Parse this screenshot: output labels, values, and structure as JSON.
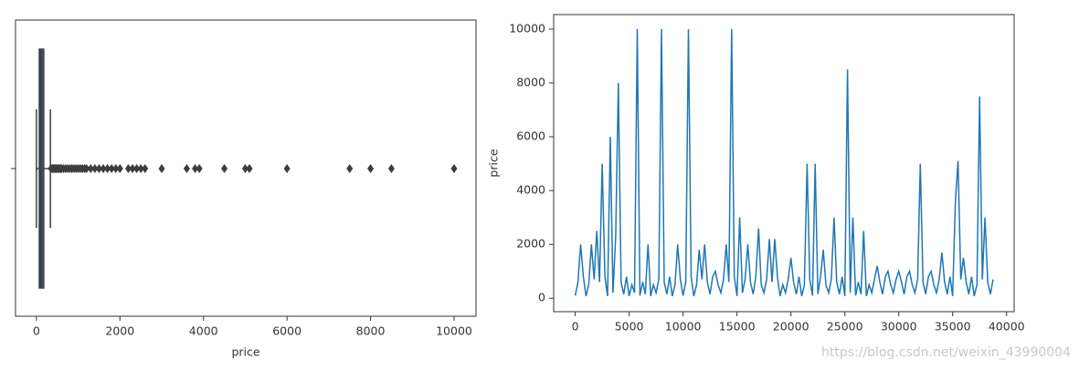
{
  "chart_data": [
    {
      "type": "box",
      "x_label": "price",
      "color": "#3e5274",
      "xlim": [
        -500,
        10525
      ],
      "xticks": [
        0,
        2000,
        4000,
        6000,
        8000,
        10000
      ],
      "whislo": 0,
      "q1": 69,
      "median": 105,
      "q3": 175,
      "whishi": 335,
      "fliers": [
        350,
        380,
        400,
        430,
        450,
        480,
        500,
        530,
        550,
        580,
        600,
        650,
        700,
        750,
        800,
        850,
        900,
        950,
        1000,
        1050,
        1100,
        1150,
        1200,
        1300,
        1400,
        1500,
        1600,
        1700,
        1800,
        1900,
        2000,
        2200,
        2300,
        2400,
        2500,
        2600,
        3000,
        3600,
        3800,
        3900,
        4500,
        5000,
        5100,
        6000,
        7500,
        8000,
        8500,
        10000
      ]
    },
    {
      "type": "line",
      "y_label": "price",
      "color": "#1f77b4",
      "xlim": [
        -2000,
        40700
      ],
      "xticks": [
        0,
        5000,
        10000,
        15000,
        20000,
        25000,
        30000,
        35000,
        40000
      ],
      "ylim": [
        -500,
        10540
      ],
      "yticks": [
        0,
        2000,
        4000,
        6000,
        8000,
        10000
      ],
      "x": [
        0,
        250,
        500,
        750,
        1000,
        1250,
        1500,
        1750,
        2000,
        2250,
        2500,
        2750,
        3000,
        3250,
        3500,
        3750,
        4000,
        4250,
        4500,
        4750,
        5000,
        5250,
        5500,
        5750,
        6000,
        6250,
        6500,
        6750,
        7000,
        7250,
        7500,
        7750,
        8000,
        8250,
        8500,
        8750,
        9000,
        9250,
        9500,
        9750,
        10000,
        10250,
        10500,
        10750,
        11000,
        11250,
        11500,
        11750,
        12000,
        12250,
        12500,
        12750,
        13000,
        13250,
        13500,
        13750,
        14000,
        14250,
        14500,
        14750,
        15000,
        15250,
        15500,
        15750,
        16000,
        16250,
        16500,
        16750,
        17000,
        17250,
        17500,
        17750,
        18000,
        18250,
        18500,
        18750,
        19000,
        19250,
        19500,
        19750,
        20000,
        20250,
        20500,
        20750,
        21000,
        21250,
        21500,
        21750,
        22000,
        22250,
        22500,
        22750,
        23000,
        23250,
        23500,
        23750,
        24000,
        24250,
        24500,
        24750,
        25000,
        25250,
        25500,
        25750,
        26000,
        26250,
        26500,
        26750,
        27000,
        27250,
        27500,
        27750,
        28000,
        28250,
        28500,
        28750,
        29000,
        29250,
        29500,
        29750,
        30000,
        30250,
        30500,
        30750,
        31000,
        31250,
        31500,
        31750,
        32000,
        32250,
        32500,
        32750,
        33000,
        33250,
        33500,
        33750,
        34000,
        34250,
        34500,
        34750,
        35000,
        35250,
        35500,
        35750,
        36000,
        36250,
        36500,
        36750,
        37000,
        37250,
        37500,
        37750,
        38000,
        38250,
        38500,
        38750
      ],
      "values": [
        100,
        600,
        2000,
        800,
        80,
        500,
        2000,
        700,
        2500,
        600,
        5000,
        800,
        80,
        6000,
        200,
        2300,
        8000,
        600,
        150,
        800,
        80,
        500,
        200,
        10000,
        100,
        600,
        150,
        2000,
        80,
        500,
        200,
        700,
        10000,
        600,
        150,
        800,
        80,
        500,
        2000,
        700,
        100,
        600,
        10000,
        800,
        80,
        500,
        1800,
        700,
        2000,
        600,
        150,
        800,
        1000,
        500,
        200,
        700,
        2000,
        600,
        10000,
        800,
        80,
        3000,
        200,
        700,
        2000,
        600,
        150,
        800,
        2600,
        500,
        200,
        700,
        2200,
        600,
        2200,
        800,
        80,
        500,
        200,
        700,
        1500,
        600,
        150,
        800,
        80,
        500,
        5000,
        700,
        100,
        5000,
        150,
        800,
        1800,
        500,
        200,
        700,
        3000,
        600,
        150,
        800,
        80,
        8500,
        200,
        3000,
        100,
        600,
        150,
        2500,
        80,
        500,
        200,
        700,
        1200,
        600,
        150,
        800,
        1000,
        500,
        200,
        700,
        1000,
        600,
        150,
        800,
        1000,
        500,
        200,
        700,
        5000,
        600,
        150,
        800,
        1000,
        500,
        200,
        700,
        1700,
        600,
        150,
        800,
        80,
        3600,
        5100,
        700,
        1500,
        600,
        150,
        800,
        80,
        500,
        7500,
        700,
        3000,
        600,
        150,
        700
      ]
    }
  ],
  "watermark": "https://blog.csdn.net/weixin_43990004"
}
